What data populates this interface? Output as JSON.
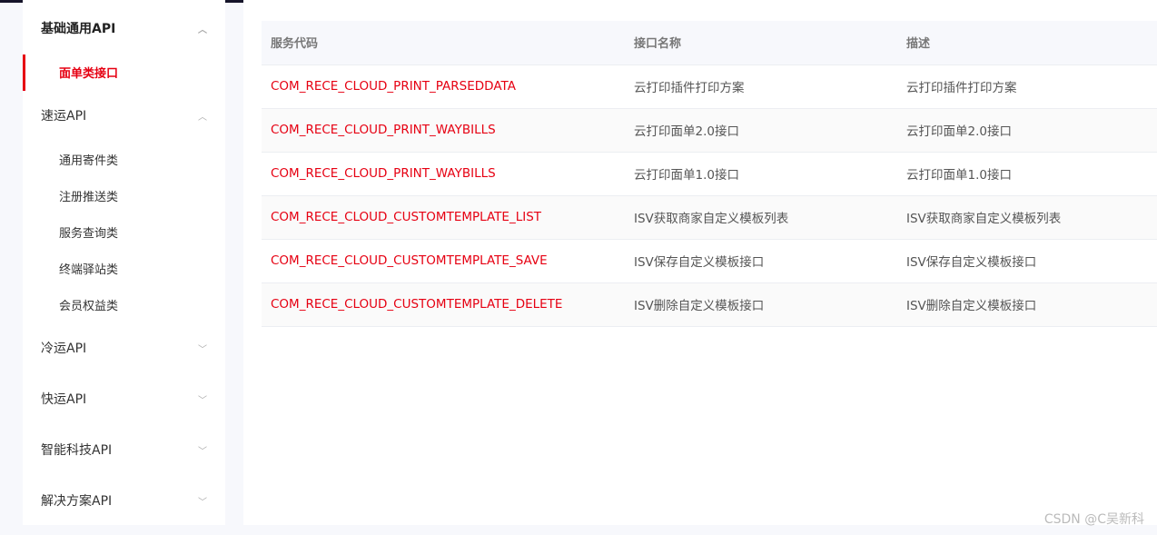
{
  "sidebar": {
    "groups": [
      {
        "label": "基础通用API",
        "expanded": true,
        "items": [
          "面单类接口"
        ]
      },
      {
        "label": "速运API",
        "expanded": true,
        "items": [
          "通用寄件类",
          "注册推送类",
          "服务查询类",
          "终端驿站类",
          "会员权益类"
        ]
      },
      {
        "label": "冷运API",
        "expanded": false
      },
      {
        "label": "快运API",
        "expanded": false
      },
      {
        "label": "智能科技API",
        "expanded": false
      },
      {
        "label": "解决方案API",
        "expanded": false
      }
    ],
    "active_item": "面单类接口"
  },
  "table": {
    "headers": [
      "服务代码",
      "接口名称",
      "描述"
    ],
    "rows": [
      [
        "COM_RECE_CLOUD_PRINT_PARSEDDATA",
        "云打印插件打印方案",
        "云打印插件打印方案"
      ],
      [
        "COM_RECE_CLOUD_PRINT_WAYBILLS",
        "云打印面单2.0接口",
        "云打印面单2.0接口"
      ],
      [
        "COM_RECE_CLOUD_PRINT_WAYBILLS",
        "云打印面单1.0接口",
        "云打印面单1.0接口"
      ],
      [
        "COM_RECE_CLOUD_CUSTOMTEMPLATE_LIST",
        "ISV获取商家自定义模板列表",
        "ISV获取商家自定义模板列表"
      ],
      [
        "COM_RECE_CLOUD_CUSTOMTEMPLATE_SAVE",
        "ISV保存自定义模板接口",
        "ISV保存自定义模板接口"
      ],
      [
        "COM_RECE_CLOUD_CUSTOMTEMPLATE_DELETE",
        "ISV删除自定义模板接口",
        "ISV删除自定义模板接口"
      ]
    ]
  },
  "watermark": "CSDN @C吴新科",
  "colors": {
    "accent": "#e60012",
    "topbar": "#15142a",
    "background": "#f7f8fc"
  },
  "icons": {
    "expanded": "chevron-up-icon",
    "collapsed": "chevron-down-icon"
  }
}
